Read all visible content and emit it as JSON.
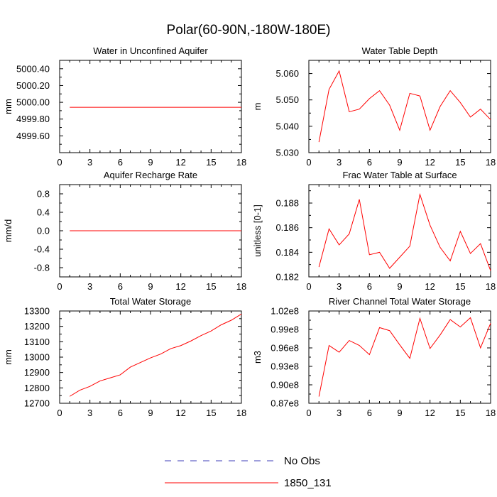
{
  "figure": {
    "title": "Polar(60-90N,-180W-180E)"
  },
  "legend": {
    "entries": [
      {
        "label": "No Obs",
        "color": "#3f3fb8",
        "style": "dashed"
      },
      {
        "label": "1850_131",
        "color": "#ff0000",
        "style": "solid"
      }
    ]
  },
  "chart_data": [
    {
      "type": "line",
      "title": "Water in Unconfined Aquifer",
      "ylabel": "mm",
      "xlim": [
        0,
        18
      ],
      "ylim": [
        4999.4,
        5000.5
      ],
      "xticks": [
        0,
        3,
        6,
        9,
        12,
        15,
        18
      ],
      "yticks": [
        4999.6,
        4999.8,
        5000.0,
        5000.2,
        5000.4
      ],
      "ytick_labels": [
        "4999.60",
        "4999.80",
        "5000.00",
        "5000.20",
        "5000.40"
      ],
      "series": [
        {
          "name": "1850_131",
          "x": [
            1,
            2,
            3,
            4,
            5,
            6,
            7,
            8,
            9,
            10,
            11,
            12,
            13,
            14,
            15,
            16,
            17,
            18
          ],
          "values": [
            4999.94,
            4999.94,
            4999.94,
            4999.94,
            4999.94,
            4999.94,
            4999.94,
            4999.94,
            4999.94,
            4999.94,
            4999.94,
            4999.94,
            4999.94,
            4999.94,
            4999.94,
            4999.94,
            4999.94,
            4999.94
          ]
        }
      ]
    },
    {
      "type": "line",
      "title": "Water Table Depth",
      "ylabel": "m",
      "xlim": [
        0,
        18
      ],
      "ylim": [
        5.03,
        5.065
      ],
      "xticks": [
        0,
        3,
        6,
        9,
        12,
        15,
        18
      ],
      "yticks": [
        5.03,
        5.04,
        5.05,
        5.06
      ],
      "ytick_labels": [
        "5.030",
        "5.040",
        "5.050",
        "5.060"
      ],
      "series": [
        {
          "name": "1850_131",
          "x": [
            1,
            2,
            3,
            4,
            5,
            6,
            7,
            8,
            9,
            10,
            11,
            12,
            13,
            14,
            15,
            16,
            17,
            18
          ],
          "values": [
            5.034,
            5.054,
            5.061,
            5.0455,
            5.0465,
            5.0505,
            5.0535,
            5.048,
            5.0385,
            5.0525,
            5.0515,
            5.0385,
            5.0475,
            5.0535,
            5.049,
            5.0435,
            5.0465,
            5.0425
          ]
        }
      ]
    },
    {
      "type": "line",
      "title": "Aquifer Recharge Rate",
      "ylabel": "mm/d",
      "xlim": [
        0,
        18
      ],
      "ylim": [
        -1.0,
        1.0
      ],
      "xticks": [
        0,
        3,
        6,
        9,
        12,
        15,
        18
      ],
      "yticks": [
        -0.8,
        -0.4,
        0.0,
        0.4,
        0.8
      ],
      "ytick_labels": [
        "-0.8",
        "-0.4",
        "0.0",
        "0.4",
        "0.8"
      ],
      "series": [
        {
          "name": "1850_131",
          "x": [
            1,
            2,
            3,
            4,
            5,
            6,
            7,
            8,
            9,
            10,
            11,
            12,
            13,
            14,
            15,
            16,
            17,
            18
          ],
          "values": [
            0,
            0,
            0,
            0,
            0,
            0,
            0,
            0,
            0,
            0,
            0,
            0,
            0,
            0,
            0,
            0,
            0,
            0
          ]
        }
      ]
    },
    {
      "type": "line",
      "title": "Frac Water Table at Surface",
      "ylabel": "unitless [0-1]",
      "xlim": [
        0,
        18
      ],
      "ylim": [
        0.182,
        0.1895
      ],
      "xticks": [
        0,
        3,
        6,
        9,
        12,
        15,
        18
      ],
      "yticks": [
        0.182,
        0.184,
        0.186,
        0.188
      ],
      "ytick_labels": [
        "0.182",
        "0.184",
        "0.186",
        "0.188"
      ],
      "series": [
        {
          "name": "1850_131",
          "x": [
            1,
            2,
            3,
            4,
            5,
            6,
            7,
            8,
            9,
            10,
            11,
            12,
            13,
            14,
            15,
            16,
            17,
            18
          ],
          "values": [
            0.1828,
            0.1859,
            0.1846,
            0.1855,
            0.1883,
            0.1838,
            0.184,
            0.1827,
            0.1836,
            0.1845,
            0.1887,
            0.1862,
            0.1844,
            0.1833,
            0.1857,
            0.1839,
            0.1847,
            0.1825
          ]
        }
      ]
    },
    {
      "type": "line",
      "title": "Total Water Storage",
      "ylabel": "mm",
      "xlim": [
        0,
        18
      ],
      "ylim": [
        12700,
        13300
      ],
      "xticks": [
        0,
        3,
        6,
        9,
        12,
        15,
        18
      ],
      "yticks": [
        12700,
        12800,
        12900,
        13000,
        13100,
        13200,
        13300
      ],
      "ytick_labels": [
        "12700",
        "12800",
        "12900",
        "13000",
        "13100",
        "13200",
        "13300"
      ],
      "series": [
        {
          "name": "1850_131",
          "x": [
            1,
            2,
            3,
            4,
            5,
            6,
            7,
            8,
            9,
            10,
            11,
            12,
            13,
            14,
            15,
            16,
            17,
            18
          ],
          "values": [
            12745,
            12785,
            12810,
            12845,
            12865,
            12885,
            12935,
            12965,
            12995,
            13020,
            13055,
            13075,
            13105,
            13140,
            13170,
            13210,
            13240,
            13280
          ]
        }
      ]
    },
    {
      "type": "line",
      "title": "River Channel Total Water Storage",
      "ylabel": "m3",
      "xlim": [
        0,
        18
      ],
      "ylim": [
        0.87,
        1.02
      ],
      "xticks": [
        0,
        3,
        6,
        9,
        12,
        15,
        18
      ],
      "yticks": [
        0.87,
        0.9,
        0.93,
        0.96,
        0.99,
        1.02
      ],
      "ytick_labels": [
        "0.87e8",
        "0.90e8",
        "0.93e8",
        "0.96e8",
        "0.99e8",
        "1.02e8"
      ],
      "series": [
        {
          "name": "1850_131",
          "x": [
            1,
            2,
            3,
            4,
            5,
            6,
            7,
            8,
            9,
            10,
            11,
            12,
            13,
            14,
            15,
            16,
            17,
            18
          ],
          "values": [
            0.881,
            0.964,
            0.953,
            0.972,
            0.964,
            0.949,
            0.993,
            0.988,
            0.965,
            0.943,
            1.008,
            0.959,
            0.981,
            1.006,
            0.994,
            1.009,
            0.96,
            1.0
          ]
        }
      ]
    }
  ]
}
